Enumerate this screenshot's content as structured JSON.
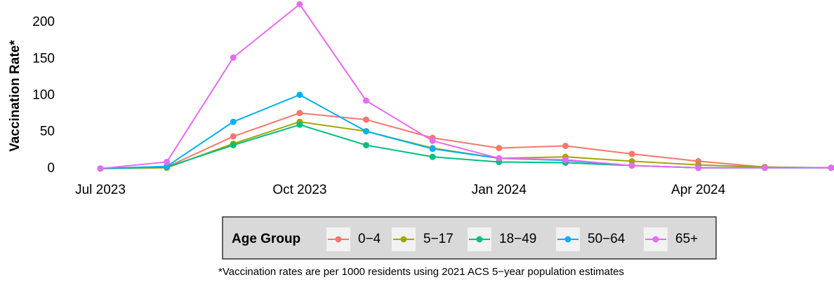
{
  "chart_data": {
    "type": "line",
    "categories": [
      "Jul 2023",
      null,
      null,
      "Oct 2023",
      null,
      null,
      "Jan 2024",
      null,
      null,
      "Apr 2024",
      null,
      null
    ],
    "y_label": "Vaccination Rate*",
    "legend_title": "Age Group",
    "caption": "*Vaccination rates are per 1000 residents using 2021 ACS 5−year population estimates",
    "ylim": [
      -4,
      228
    ],
    "yticks": [
      0,
      50,
      100,
      150,
      200
    ],
    "grid": false,
    "legend": "bottom",
    "series": [
      {
        "name": "0−4",
        "color": "#F8766D",
        "values": [
          0,
          2,
          44,
          76,
          67,
          42,
          28,
          31,
          20,
          10,
          2,
          1
        ]
      },
      {
        "name": "5−17",
        "color": "#A3A500",
        "values": [
          0,
          1,
          34,
          64,
          51,
          28,
          14,
          16,
          10,
          5,
          2,
          1
        ]
      },
      {
        "name": "18−49",
        "color": "#00BF7D",
        "values": [
          0,
          2,
          32,
          60,
          32,
          16,
          9,
          8,
          4,
          1,
          1,
          1
        ]
      },
      {
        "name": "50−64",
        "color": "#00B0F6",
        "values": [
          0,
          3,
          64,
          101,
          51,
          27,
          14,
          11,
          4,
          1,
          1,
          1
        ]
      },
      {
        "name": "65+",
        "color": "#E76BF3",
        "values": [
          0,
          9,
          152,
          225,
          93,
          38,
          14,
          12,
          4,
          1,
          1,
          1
        ]
      }
    ]
  }
}
